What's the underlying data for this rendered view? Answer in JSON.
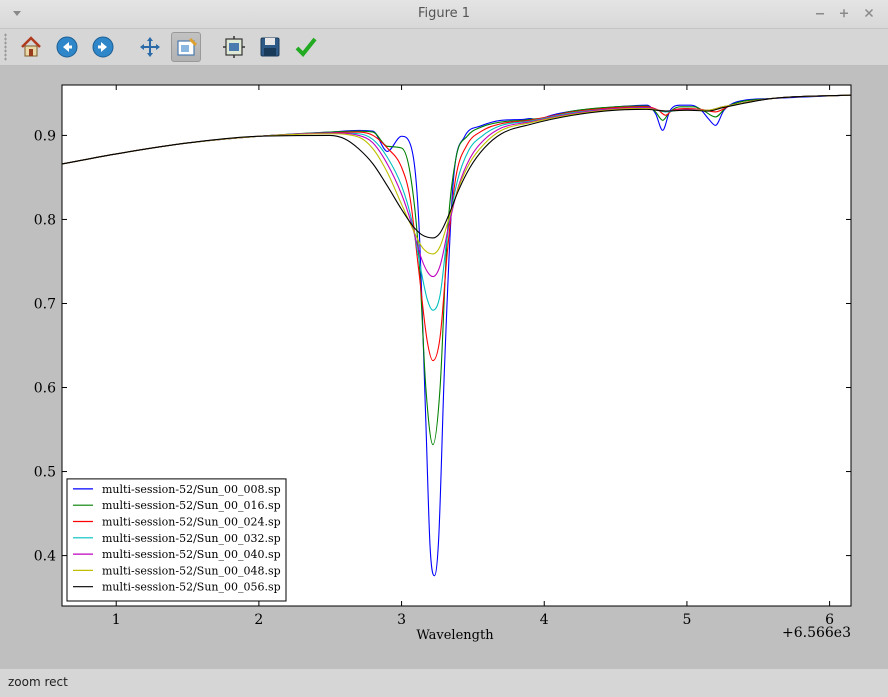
{
  "window": {
    "title": "Figure 1"
  },
  "toolbar": {
    "buttons": [
      {
        "name": "home",
        "icon": "home-icon"
      },
      {
        "name": "back",
        "icon": "arrow-left-icon"
      },
      {
        "name": "forward",
        "icon": "arrow-right-icon"
      },
      {
        "name": "pan",
        "icon": "move-icon"
      },
      {
        "name": "zoom",
        "icon": "zoom-rect-icon",
        "active": true
      },
      {
        "name": "subplots",
        "icon": "subplots-icon"
      },
      {
        "name": "save",
        "icon": "save-icon"
      },
      {
        "name": "edit",
        "icon": "checkmark-icon"
      }
    ]
  },
  "status": {
    "text": "zoom rect"
  },
  "chart_data": {
    "type": "line",
    "xlabel": "Wavelength",
    "ylabel": "",
    "x_offset_text": "+6.566e3",
    "xlim": [
      0.62,
      6.15
    ],
    "ylim": [
      0.34,
      0.96
    ],
    "xticks": [
      "1",
      "2",
      "3",
      "4",
      "5",
      "6"
    ],
    "yticks": [
      "0.4",
      "0.5",
      "0.6",
      "0.7",
      "0.8",
      "0.9"
    ],
    "grid": false,
    "legend_position": "lower-left",
    "series": [
      {
        "name": "multi-session-52/Sun_00_008.sp",
        "color": "#0000ff",
        "min": 0.376,
        "x": [
          0.62,
          1.0,
          1.5,
          2.0,
          2.5,
          2.7,
          2.8,
          2.9,
          3.0,
          3.06,
          3.12,
          3.17,
          3.2,
          3.23,
          3.26,
          3.3,
          3.36,
          3.44,
          3.55,
          3.7,
          3.85,
          3.9,
          3.95,
          4.0,
          4.05,
          4.2,
          4.5,
          4.72,
          4.78,
          4.83,
          4.88,
          4.95,
          5.03,
          5.1,
          5.15,
          5.2,
          5.26,
          5.35,
          5.6,
          6.15
        ],
        "y": [
          0.866,
          0.878,
          0.891,
          0.899,
          0.904,
          0.906,
          0.905,
          0.881,
          0.899,
          0.89,
          0.8,
          0.56,
          0.41,
          0.376,
          0.42,
          0.62,
          0.84,
          0.898,
          0.911,
          0.918,
          0.919,
          0.92,
          0.919,
          0.921,
          0.924,
          0.929,
          0.934,
          0.936,
          0.926,
          0.906,
          0.929,
          0.936,
          0.936,
          0.93,
          0.92,
          0.912,
          0.93,
          0.94,
          0.944,
          0.948
        ]
      },
      {
        "name": "multi-session-52/Sun_00_016.sp",
        "color": "#008000",
        "min": 0.532,
        "x": [
          0.62,
          1.0,
          1.5,
          2.0,
          2.5,
          2.7,
          2.8,
          2.9,
          3.0,
          3.06,
          3.12,
          3.17,
          3.22,
          3.27,
          3.32,
          3.38,
          3.46,
          3.56,
          3.7,
          3.85,
          3.9,
          4.0,
          4.2,
          4.5,
          4.72,
          4.78,
          4.83,
          4.88,
          4.95,
          5.05,
          5.12,
          5.2,
          5.28,
          5.6,
          6.15
        ],
        "y": [
          0.866,
          0.878,
          0.891,
          0.899,
          0.904,
          0.905,
          0.904,
          0.887,
          0.885,
          0.855,
          0.76,
          0.6,
          0.532,
          0.6,
          0.78,
          0.872,
          0.899,
          0.91,
          0.916,
          0.918,
          0.919,
          0.921,
          0.929,
          0.934,
          0.935,
          0.928,
          0.918,
          0.928,
          0.934,
          0.934,
          0.929,
          0.922,
          0.934,
          0.944,
          0.948
        ]
      },
      {
        "name": "multi-session-52/Sun_00_024.sp",
        "color": "#ff0000",
        "min": 0.632,
        "x": [
          0.62,
          1.0,
          1.5,
          2.0,
          2.5,
          2.7,
          2.8,
          2.9,
          3.0,
          3.06,
          3.12,
          3.18,
          3.22,
          3.27,
          3.32,
          3.38,
          3.46,
          3.56,
          3.7,
          3.9,
          4.2,
          4.5,
          4.72,
          4.8,
          4.85,
          4.9,
          5.0,
          5.1,
          5.2,
          5.3,
          5.6,
          6.15
        ],
        "y": [
          0.866,
          0.878,
          0.891,
          0.899,
          0.903,
          0.904,
          0.9,
          0.885,
          0.862,
          0.825,
          0.74,
          0.655,
          0.632,
          0.66,
          0.76,
          0.85,
          0.889,
          0.905,
          0.914,
          0.918,
          0.928,
          0.933,
          0.934,
          0.93,
          0.924,
          0.93,
          0.932,
          0.931,
          0.928,
          0.935,
          0.944,
          0.948
        ]
      },
      {
        "name": "multi-session-52/Sun_00_032.sp",
        "color": "#00bfbf",
        "min": 0.692,
        "x": [
          0.62,
          1.0,
          1.5,
          2.0,
          2.5,
          2.7,
          2.8,
          2.9,
          3.0,
          3.07,
          3.13,
          3.18,
          3.22,
          3.27,
          3.32,
          3.39,
          3.47,
          3.57,
          3.7,
          3.9,
          4.2,
          4.5,
          4.72,
          4.85,
          5.0,
          5.15,
          5.25,
          5.6,
          6.15
        ],
        "y": [
          0.866,
          0.878,
          0.891,
          0.899,
          0.903,
          0.902,
          0.895,
          0.874,
          0.84,
          0.8,
          0.745,
          0.705,
          0.692,
          0.71,
          0.78,
          0.845,
          0.882,
          0.9,
          0.912,
          0.917,
          0.927,
          0.932,
          0.933,
          0.928,
          0.931,
          0.93,
          0.934,
          0.944,
          0.948
        ]
      },
      {
        "name": "multi-session-52/Sun_00_040.sp",
        "color": "#bf00bf",
        "min": 0.732,
        "x": [
          0.62,
          1.0,
          1.5,
          2.0,
          2.5,
          2.7,
          2.8,
          2.9,
          3.0,
          3.07,
          3.13,
          3.18,
          3.22,
          3.27,
          3.33,
          3.4,
          3.48,
          3.58,
          3.7,
          3.9,
          4.2,
          4.5,
          4.72,
          4.85,
          5.0,
          5.15,
          5.25,
          5.6,
          6.15
        ],
        "y": [
          0.866,
          0.878,
          0.891,
          0.899,
          0.903,
          0.9,
          0.891,
          0.866,
          0.83,
          0.795,
          0.758,
          0.738,
          0.732,
          0.745,
          0.792,
          0.84,
          0.873,
          0.895,
          0.909,
          0.916,
          0.926,
          0.932,
          0.933,
          0.929,
          0.931,
          0.93,
          0.934,
          0.944,
          0.948
        ]
      },
      {
        "name": "multi-session-52/Sun_00_048.sp",
        "color": "#bfbf00",
        "min": 0.759,
        "x": [
          0.62,
          1.0,
          1.5,
          2.0,
          2.5,
          2.7,
          2.8,
          2.9,
          3.0,
          3.08,
          3.14,
          3.18,
          3.22,
          3.27,
          3.33,
          3.4,
          3.48,
          3.58,
          3.7,
          3.9,
          4.2,
          4.5,
          4.72,
          4.85,
          5.0,
          5.15,
          5.25,
          5.6,
          6.15
        ],
        "y": [
          0.866,
          0.878,
          0.891,
          0.899,
          0.902,
          0.898,
          0.884,
          0.856,
          0.818,
          0.788,
          0.768,
          0.761,
          0.759,
          0.768,
          0.8,
          0.838,
          0.868,
          0.89,
          0.906,
          0.915,
          0.925,
          0.931,
          0.932,
          0.929,
          0.93,
          0.93,
          0.934,
          0.944,
          0.948
        ]
      },
      {
        "name": "multi-session-52/Sun_00_056.sp",
        "color": "#000000",
        "min": 0.778,
        "x": [
          0.62,
          1.0,
          1.5,
          2.0,
          2.5,
          2.6,
          2.7,
          2.8,
          2.9,
          3.0,
          3.08,
          3.14,
          3.18,
          3.22,
          3.27,
          3.33,
          3.4,
          3.48,
          3.58,
          3.7,
          3.9,
          4.2,
          4.5,
          4.72,
          4.85,
          5.0,
          5.15,
          5.25,
          5.6,
          6.15
        ],
        "y": [
          0.866,
          0.878,
          0.891,
          0.899,
          0.9,
          0.896,
          0.884,
          0.866,
          0.84,
          0.812,
          0.792,
          0.782,
          0.779,
          0.778,
          0.784,
          0.805,
          0.835,
          0.862,
          0.885,
          0.902,
          0.913,
          0.924,
          0.93,
          0.931,
          0.929,
          0.93,
          0.929,
          0.933,
          0.944,
          0.948
        ]
      }
    ]
  }
}
